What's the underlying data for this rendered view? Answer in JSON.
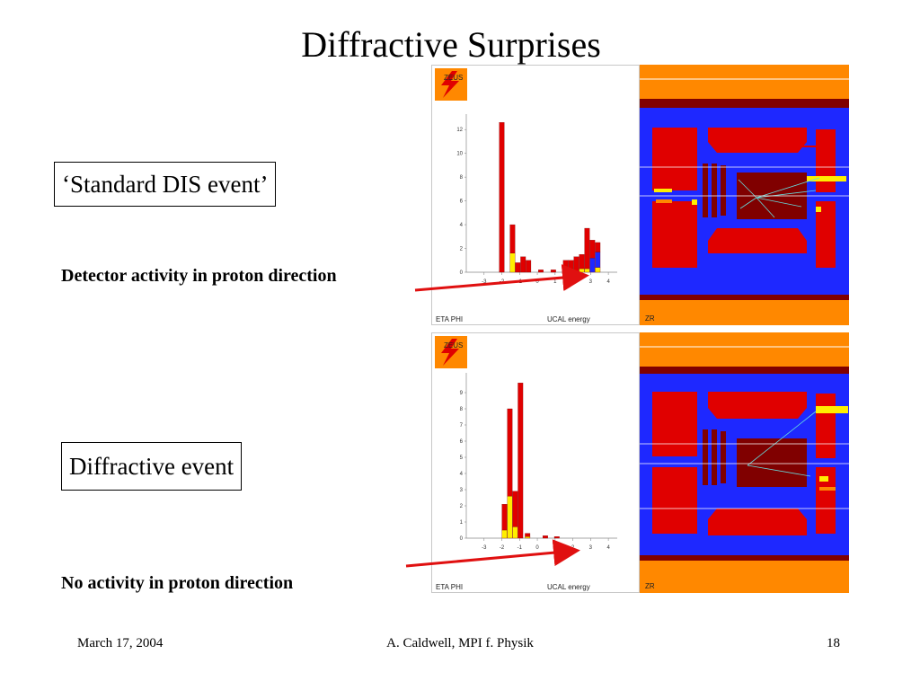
{
  "slide": {
    "title": "Diffractive Surprises",
    "label_standard": "‘Standard DIS event’",
    "note_top": "Detector activity in proton direction",
    "label_diffractive": "Diffractive event",
    "note_bottom": "No activity in proton direction"
  },
  "footer": {
    "date": "March 17, 2004",
    "author": "A. Caldwell, MPI f. Physik",
    "page": "18"
  },
  "panels": {
    "logo_text": "ZEUS",
    "caption_left_a": "ETA PHI",
    "caption_left_b": "UCAL energy",
    "caption_right": "ZR"
  },
  "colors": {
    "red": "#e00000",
    "yellow": "#ffee00",
    "blue": "#1e28ff",
    "orange": "#ff8800",
    "darkred": "#800000",
    "arrow": "#e01010"
  },
  "chart_data": [
    {
      "type": "bar",
      "xlabel": "",
      "ylabel": "",
      "ylim": [
        0,
        13
      ],
      "xlim": [
        -4,
        4.5
      ],
      "x_ticks": [
        -3,
        -2,
        -1,
        0,
        1,
        2,
        3,
        4
      ],
      "y_ticks": [
        0,
        2,
        4,
        6,
        8,
        10,
        12
      ],
      "bars": [
        {
          "x": -2.0,
          "red": 12.6,
          "yellow": 0,
          "blue": 0
        },
        {
          "x": -1.4,
          "red": 2.4,
          "yellow": 1.6,
          "blue": 0
        },
        {
          "x": -1.1,
          "red": 0.8,
          "yellow": 0,
          "blue": 0
        },
        {
          "x": -0.8,
          "red": 1.3,
          "yellow": 0,
          "blue": 0
        },
        {
          "x": -0.5,
          "red": 1.0,
          "yellow": 0,
          "blue": 0
        },
        {
          "x": 0.2,
          "red": 0.2,
          "yellow": 0,
          "blue": 0
        },
        {
          "x": 0.9,
          "red": 0.2,
          "yellow": 0,
          "blue": 0
        },
        {
          "x": 1.6,
          "red": 1.0,
          "yellow": 0,
          "blue": 0
        },
        {
          "x": 1.9,
          "red": 0.7,
          "yellow": 0.3,
          "blue": 0
        },
        {
          "x": 2.2,
          "red": 1.3,
          "yellow": 0,
          "blue": 0
        },
        {
          "x": 2.5,
          "red": 1.2,
          "yellow": 0.3,
          "blue": 0
        },
        {
          "x": 2.8,
          "red": 3.4,
          "yellow": 0.3,
          "blue": 0
        },
        {
          "x": 3.1,
          "red": 1.5,
          "yellow": 0,
          "blue": 1.2
        },
        {
          "x": 3.4,
          "red": 0.8,
          "yellow": 0.4,
          "blue": 1.3
        }
      ]
    },
    {
      "type": "bar",
      "xlabel": "",
      "ylabel": "",
      "ylim": [
        0,
        10
      ],
      "xlim": [
        -4,
        4.5
      ],
      "x_ticks": [
        -3,
        -2,
        -1,
        0,
        1,
        2,
        3,
        4
      ],
      "y_ticks": [
        0,
        1,
        2,
        3,
        4,
        5,
        6,
        7,
        8,
        9
      ],
      "bars": [
        {
          "x": -1.85,
          "red": 1.6,
          "yellow": 0.5,
          "blue": 0
        },
        {
          "x": -1.55,
          "red": 5.4,
          "yellow": 2.6,
          "blue": 0
        },
        {
          "x": -1.25,
          "red": 2.2,
          "yellow": 0.7,
          "blue": 0
        },
        {
          "x": -0.95,
          "red": 9.6,
          "yellow": 0,
          "blue": 0
        },
        {
          "x": -0.55,
          "red": 0.2,
          "yellow": 0.1,
          "blue": 0
        },
        {
          "x": 0.45,
          "red": 0.15,
          "yellow": 0,
          "blue": 0
        },
        {
          "x": 1.1,
          "red": 0.1,
          "yellow": 0,
          "blue": 0
        }
      ]
    }
  ]
}
